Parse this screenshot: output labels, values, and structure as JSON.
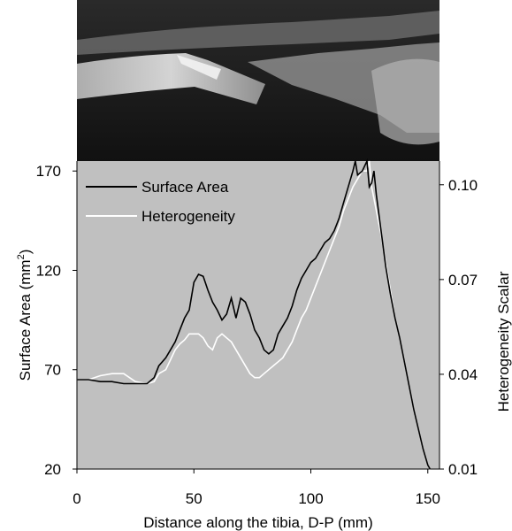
{
  "chart_data": {
    "type": "line",
    "xlabel": "Distance along the tibia, D-P (mm)",
    "ylabel_left": "Surface Area (mm",
    "ylabel_left_sup": "2",
    "ylabel_left_close": ")",
    "ylabel_right": "Heterogeneity Scalar",
    "xlim": [
      0,
      155
    ],
    "ylim_left": [
      20,
      175
    ],
    "ylim_right": [
      0.01,
      0.1075
    ],
    "x_ticks": [
      0,
      50,
      100,
      150
    ],
    "y_left_ticks": [
      20,
      70,
      120,
      170
    ],
    "y_right_ticks": [
      0.01,
      0.04,
      0.07,
      0.1
    ],
    "x_tick_labels": [
      "0",
      "50",
      "100",
      "150"
    ],
    "y_left_tick_labels": [
      "20",
      "70",
      "120",
      "170"
    ],
    "y_right_tick_labels": [
      "0.01",
      "0.04",
      "0.07",
      "0.10"
    ],
    "plot_background": "#c0c0c0",
    "legend_position": "top-left",
    "series": [
      {
        "name": "Surface Area",
        "color": "#000000",
        "axis": "left",
        "x": [
          0,
          5,
          10,
          15,
          20,
          25,
          30,
          33,
          35,
          38,
          40,
          42,
          44,
          46,
          48,
          50,
          52,
          54,
          56,
          58,
          60,
          62,
          64,
          66,
          68,
          70,
          72,
          74,
          76,
          78,
          80,
          82,
          84,
          86,
          88,
          90,
          92,
          94,
          96,
          98,
          100,
          102,
          104,
          106,
          108,
          110,
          112,
          114,
          116,
          118,
          119,
          120,
          122,
          124,
          125,
          126,
          127,
          128,
          130,
          132,
          134,
          136,
          138,
          140,
          142,
          144,
          146,
          148,
          150,
          151
        ],
        "y": [
          65,
          65,
          64,
          64,
          63,
          63,
          63,
          66,
          72,
          76,
          80,
          84,
          90,
          96,
          100,
          114,
          118,
          117,
          110,
          104,
          100,
          95,
          98,
          106,
          96,
          106,
          104,
          98,
          90,
          86,
          80,
          78,
          80,
          88,
          92,
          96,
          102,
          110,
          116,
          120,
          124,
          126,
          130,
          134,
          136,
          140,
          146,
          154,
          162,
          170,
          178,
          168,
          170,
          176,
          162,
          164,
          170,
          158,
          140,
          122,
          108,
          96,
          86,
          74,
          62,
          50,
          40,
          30,
          22,
          20
        ]
      },
      {
        "name": "Heterogeneity",
        "color": "#ffffff",
        "axis": "left",
        "x": [
          0,
          5,
          10,
          15,
          20,
          25,
          30,
          33,
          35,
          38,
          40,
          42,
          44,
          46,
          48,
          50,
          52,
          54,
          56,
          58,
          60,
          62,
          64,
          66,
          68,
          70,
          72,
          74,
          76,
          78,
          80,
          82,
          84,
          86,
          88,
          90,
          92,
          94,
          96,
          98,
          100,
          102,
          104,
          106,
          108,
          110,
          112,
          114,
          116,
          118,
          120,
          122,
          124,
          125,
          126,
          128,
          130,
          132,
          134,
          136,
          138,
          140,
          142,
          144,
          146,
          148,
          150,
          151
        ],
        "y": [
          65,
          65,
          67,
          68,
          68,
          64,
          63,
          64,
          68,
          70,
          75,
          80,
          83,
          85,
          88,
          88,
          88,
          86,
          82,
          80,
          86,
          88,
          86,
          84,
          80,
          76,
          72,
          68,
          66,
          66,
          68,
          70,
          72,
          74,
          76,
          80,
          84,
          90,
          96,
          100,
          106,
          112,
          118,
          124,
          130,
          136,
          142,
          150,
          156,
          162,
          166,
          170,
          170,
          176,
          162,
          150,
          138,
          124,
          110,
          96,
          86,
          74,
          62,
          50,
          40,
          30,
          22,
          20
        ]
      }
    ]
  }
}
